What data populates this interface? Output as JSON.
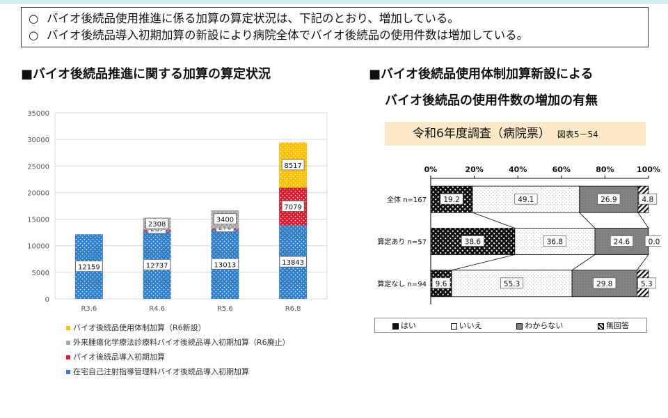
{
  "summary": {
    "mark": "○",
    "lines": [
      "バイオ後続品使用推進に係る加算の算定状況は、下記のとおり、増加している。",
      "バイオ後続品導入初期加算の新設により病院全体でバイオ後続品の使用件数は増加している。"
    ]
  },
  "left_title": "■バイオ後続品推進に関する加算の算定状況",
  "right_title_1": "■バイオ後続品使用体制加算新設による",
  "right_title_2": "バイオ後続品の使用件数の増加の有無",
  "survey": {
    "label": "令和6年度調査（病院票）",
    "figure": "図表5－54"
  },
  "colors": {
    "taisei": "#ffc000",
    "gairai": "#a6a6a6",
    "dounyu": "#e31a2e",
    "zaitaku": "#2e7fd4",
    "hai": "#111111",
    "iie": "#ffffff",
    "wakaranai": "#7f7f7f",
    "mukaitou": "#ffffff"
  },
  "chart_data": [
    {
      "type": "bar",
      "stacked": true,
      "categories": [
        "R3.6",
        "R4.6",
        "R5.6",
        "R6.8"
      ],
      "ylim": [
        0,
        35000
      ],
      "yticks": [
        0,
        5000,
        10000,
        15000,
        20000,
        25000,
        30000,
        35000
      ],
      "series": [
        {
          "name": "在宅自己注射指導管理料バイオ後続品導入初期加算",
          "values": [
            12159,
            12737,
            13013,
            13843
          ]
        },
        {
          "name": "パイオ後続品導入初期加算",
          "values": [
            0,
            237,
            270,
            7079
          ]
        },
        {
          "name": "外来腫瘍化学療法診療料バイオ後続品導入初期加算（R6廃止）",
          "values": [
            0,
            2308,
            3400,
            0
          ]
        },
        {
          "name": "バイオ後続品使用体制加算（R6新設）",
          "values": [
            0,
            0,
            0,
            8517
          ]
        }
      ],
      "legend_order": [
        3,
        2,
        1,
        0
      ],
      "grid": true
    },
    {
      "type": "bar",
      "orientation": "horizontal",
      "stacked": true,
      "percent": true,
      "xlim": [
        0,
        100
      ],
      "xticks": [
        "0%",
        "20%",
        "40%",
        "60%",
        "80%",
        "100%"
      ],
      "categories": [
        "全体 n=167",
        "算定あり n=57",
        "算定なし n=94"
      ],
      "series": [
        {
          "name": "はい",
          "values": [
            19.2,
            38.6,
            9.6
          ]
        },
        {
          "name": "いいえ",
          "values": [
            49.1,
            36.8,
            55.3
          ]
        },
        {
          "name": "わからない",
          "values": [
            26.9,
            24.6,
            29.8
          ]
        },
        {
          "name": "無回答",
          "values": [
            4.8,
            0.0,
            5.3
          ]
        }
      ]
    }
  ]
}
